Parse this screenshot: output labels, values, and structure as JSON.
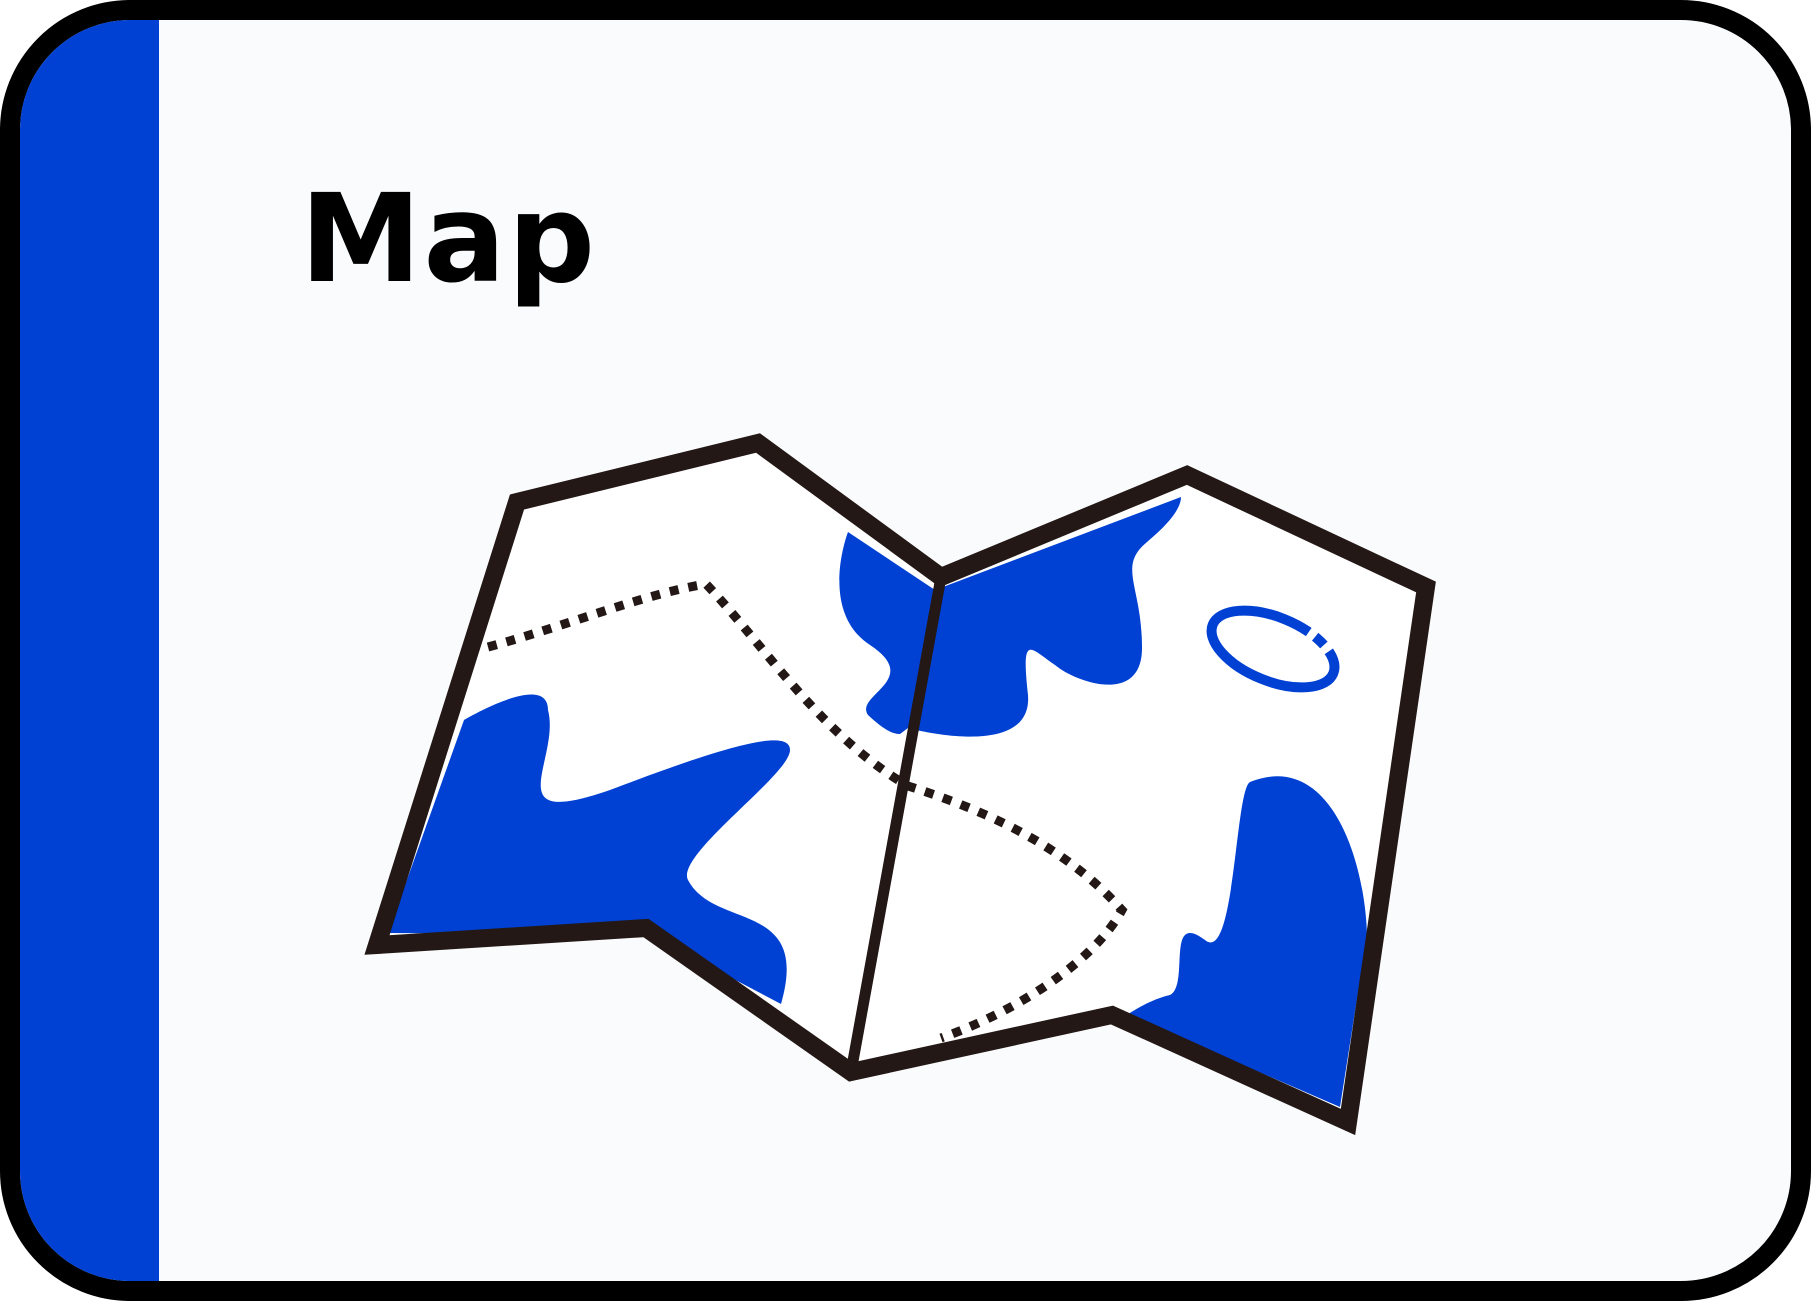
{
  "card": {
    "title": "Map",
    "icon": "folded-map-icon"
  },
  "colors": {
    "accent": "#0041d4",
    "outline": "#231815",
    "border": "#000000",
    "background": "#fafbfd",
    "map_paper": "#ffffff"
  }
}
